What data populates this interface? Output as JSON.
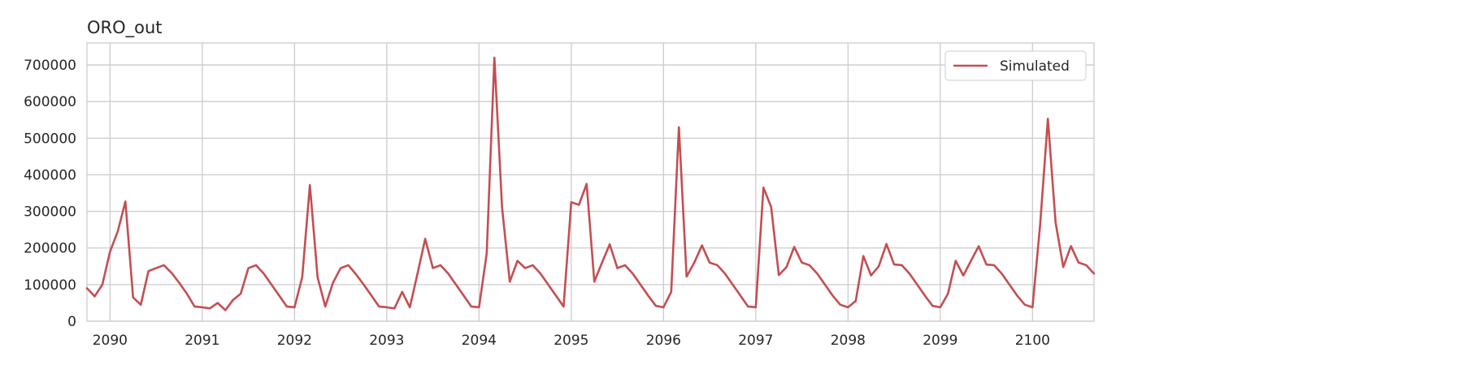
{
  "chart_data": {
    "type": "line",
    "title": "ORO_out",
    "xlabel": "",
    "ylabel": "",
    "x_ticks": [
      "2090",
      "2091",
      "2092",
      "2093",
      "2094",
      "2095",
      "2096",
      "2097",
      "2098",
      "2099",
      "2100"
    ],
    "y_ticks": [
      "0",
      "100000",
      "200000",
      "300000",
      "400000",
      "500000",
      "600000",
      "700000"
    ],
    "xlim": [
      "2089-10",
      "2100-09"
    ],
    "ylim": [
      0,
      760000
    ],
    "grid": true,
    "legend": {
      "placement": "top-right"
    },
    "series": [
      {
        "name": "Simulated",
        "color": "#c44e52",
        "x": [
          "2089-10",
          "2089-11",
          "2089-12",
          "2090-01",
          "2090-02",
          "2090-03",
          "2090-04",
          "2090-05",
          "2090-06",
          "2090-07",
          "2090-08",
          "2090-09",
          "2090-10",
          "2090-11",
          "2090-12",
          "2091-01",
          "2091-02",
          "2091-03",
          "2091-04",
          "2091-05",
          "2091-06",
          "2091-07",
          "2091-08",
          "2091-09",
          "2091-10",
          "2091-11",
          "2091-12",
          "2092-01",
          "2092-02",
          "2092-03",
          "2092-04",
          "2092-05",
          "2092-06",
          "2092-07",
          "2092-08",
          "2092-09",
          "2092-10",
          "2092-11",
          "2092-12",
          "2093-01",
          "2093-02",
          "2093-03",
          "2093-04",
          "2093-05",
          "2093-06",
          "2093-07",
          "2093-08",
          "2093-09",
          "2093-10",
          "2093-11",
          "2093-12",
          "2094-01",
          "2094-02",
          "2094-03",
          "2094-04",
          "2094-05",
          "2094-06",
          "2094-07",
          "2094-08",
          "2094-09",
          "2094-10",
          "2094-11",
          "2094-12",
          "2095-01",
          "2095-02",
          "2095-03",
          "2095-04",
          "2095-05",
          "2095-06",
          "2095-07",
          "2095-08",
          "2095-09",
          "2095-10",
          "2095-11",
          "2095-12",
          "2096-01",
          "2096-02",
          "2096-03",
          "2096-04",
          "2096-05",
          "2096-06",
          "2096-07",
          "2096-08",
          "2096-09",
          "2096-10",
          "2096-11",
          "2096-12",
          "2097-01",
          "2097-02",
          "2097-03",
          "2097-04",
          "2097-05",
          "2097-06",
          "2097-07",
          "2097-08",
          "2097-09",
          "2097-10",
          "2097-11",
          "2097-12",
          "2098-01",
          "2098-02",
          "2098-03",
          "2098-04",
          "2098-05",
          "2098-06",
          "2098-07",
          "2098-08",
          "2098-09",
          "2098-10",
          "2098-11",
          "2098-12",
          "2099-01",
          "2099-02",
          "2099-03",
          "2099-04",
          "2099-05",
          "2099-06",
          "2099-07",
          "2099-08",
          "2099-09",
          "2099-10",
          "2099-11",
          "2099-12",
          "2100-01",
          "2100-02",
          "2100-03",
          "2100-04",
          "2100-05",
          "2100-06",
          "2100-07",
          "2100-08",
          "2100-09"
        ],
        "values": [
          90000,
          68000,
          100000,
          190000,
          245000,
          327000,
          65000,
          45000,
          137000,
          145000,
          153000,
          132000,
          105000,
          75000,
          40000,
          38000,
          35000,
          50000,
          30000,
          58000,
          75000,
          145000,
          153000,
          130000,
          100000,
          70000,
          40000,
          38000,
          120000,
          372000,
          120000,
          40000,
          105000,
          145000,
          153000,
          128000,
          100000,
          70000,
          40000,
          38000,
          35000,
          80000,
          38000,
          130000,
          225000,
          145000,
          153000,
          130000,
          100000,
          70000,
          40000,
          38000,
          185000,
          720000,
          310000,
          108000,
          165000,
          145000,
          153000,
          130000,
          100000,
          70000,
          40000,
          325000,
          318000,
          375000,
          108000,
          160000,
          210000,
          145000,
          153000,
          130000,
          100000,
          70000,
          42000,
          38000,
          80000,
          530000,
          122000,
          160000,
          207000,
          160000,
          153000,
          130000,
          100000,
          70000,
          40000,
          38000,
          365000,
          312000,
          126000,
          148000,
          203000,
          160000,
          153000,
          130000,
          100000,
          70000,
          45000,
          38000,
          55000,
          178000,
          125000,
          150000,
          211000,
          155000,
          153000,
          130000,
          100000,
          70000,
          42000,
          38000,
          75000,
          165000,
          125000,
          165000,
          205000,
          155000,
          153000,
          130000,
          100000,
          70000,
          45000,
          38000,
          265000,
          553000,
          270000,
          148000,
          205000,
          160000,
          153000,
          130000
        ]
      }
    ]
  }
}
